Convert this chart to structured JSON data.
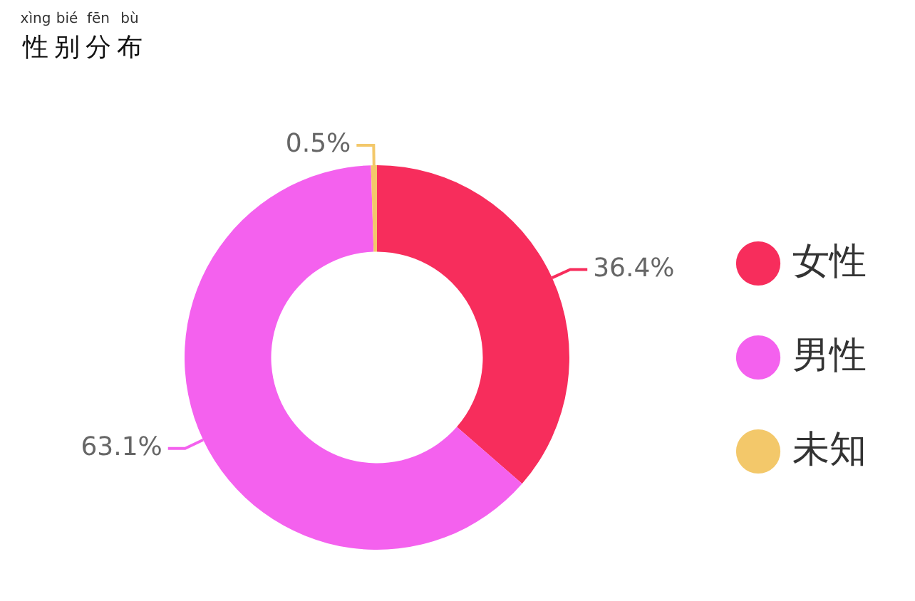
{
  "chart_data": {
    "type": "donut",
    "title": "性别分布",
    "annotations": [
      "xìng",
      "bié",
      "fēn",
      "bù"
    ],
    "categories": [
      "女性",
      "男性",
      "未知"
    ],
    "values": [
      36.4,
      63.1,
      0.5
    ],
    "colors": [
      "#f72d5c",
      "#f461ee",
      "#f3c86a"
    ],
    "value_labels": [
      "36.4%",
      "63.1%",
      "0.5%"
    ],
    "legend": "right"
  }
}
